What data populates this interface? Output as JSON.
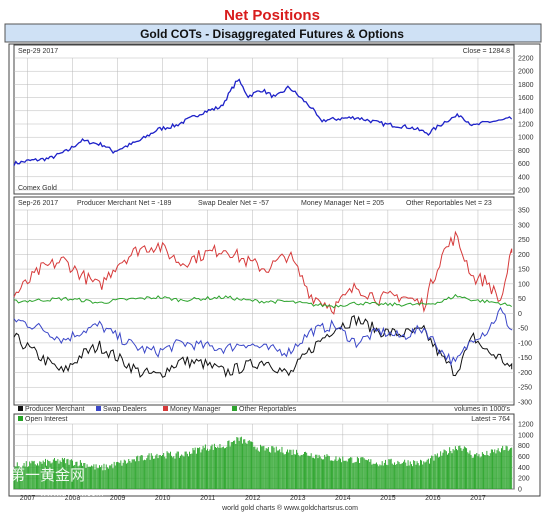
{
  "header": {
    "title": "Net Positions",
    "subtitle": "Gold COTs - Disaggregated Futures & Options"
  },
  "footer": {
    "credit": "world gold charts ® www.goldchartsrus.com",
    "watermark_cn": "第一黄金网",
    "watermark_url": "www.dyhjw.com"
  },
  "colors": {
    "title": "#d81c1c",
    "subtitle_bg": "#cfe1f5",
    "price_line": "#1e22c8",
    "producer": "#111111",
    "swap": "#3b47c8",
    "money": "#d63a3a",
    "other": "#2ea42e",
    "oi_bar": "#27a327",
    "grid": "#b9b9b9"
  },
  "chart_data": [
    {
      "type": "line",
      "name": "price",
      "label_date": "Sep-29 2017",
      "label_close": "Close = 1284.8",
      "label_source": "Comex Gold",
      "ylim": [
        200,
        2200
      ],
      "yticks": [
        200,
        400,
        600,
        800,
        1000,
        1200,
        1400,
        1600,
        1800,
        2000,
        2200
      ],
      "x_years": [
        "2007",
        "2008",
        "2009",
        "2010",
        "2011",
        "2012",
        "2013",
        "2014",
        "2015",
        "2016",
        "2017"
      ],
      "x": [
        2006.7,
        2007.0,
        2007.5,
        2007.9,
        2008.2,
        2008.7,
        2008.9,
        2009.5,
        2009.9,
        2010.3,
        2010.9,
        2011.3,
        2011.67,
        2011.9,
        2012.2,
        2012.5,
        2012.8,
        2013.3,
        2013.5,
        2013.9,
        2014.3,
        2014.9,
        2015.5,
        2015.9,
        2016.3,
        2016.6,
        2016.9,
        2017.2,
        2017.5,
        2017.75
      ],
      "series": [
        {
          "values": [
            600,
            640,
            680,
            800,
            950,
            880,
            780,
            950,
            1120,
            1180,
            1380,
            1460,
            1880,
            1620,
            1720,
            1600,
            1760,
            1450,
            1250,
            1280,
            1300,
            1200,
            1150,
            1060,
            1250,
            1340,
            1170,
            1230,
            1250,
            1284.8
          ]
        }
      ]
    },
    {
      "type": "line",
      "name": "net_positions",
      "label_date": "Sep-26 2017",
      "ylim": [
        -300,
        350
      ],
      "yticks": [
        -300,
        -250,
        -200,
        -150,
        -100,
        -50,
        0,
        50,
        100,
        150,
        200,
        250,
        300,
        350
      ],
      "legend": [
        "Producer Merchant",
        "Swap Dealers",
        "Money Manager",
        "Other Reportables"
      ],
      "legend_note": "volumes in 1000's",
      "series": [
        {
          "name": "Producer Merchant",
          "header_label": "Producer Merchant Net = -189",
          "x": [
            2006.7,
            2007.3,
            2007.8,
            2008.2,
            2008.6,
            2009.0,
            2009.5,
            2009.9,
            2010.4,
            2010.9,
            2011.4,
            2011.8,
            2012.3,
            2012.8,
            2013.3,
            2013.8,
            2014.3,
            2014.8,
            2015.3,
            2015.8,
            2016.2,
            2016.5,
            2016.9,
            2017.2,
            2017.5,
            2017.75
          ],
          "values": [
            -80,
            -150,
            -200,
            -140,
            -110,
            -150,
            -200,
            -210,
            -160,
            -170,
            -200,
            -180,
            -160,
            -210,
            -120,
            -50,
            -20,
            -60,
            -70,
            -60,
            -150,
            -200,
            -80,
            -130,
            -150,
            -189
          ]
        },
        {
          "name": "Swap Dealers",
          "header_label": "Swap Dealer Net = -57",
          "x": [
            2006.7,
            2007.3,
            2007.8,
            2008.2,
            2008.6,
            2009.0,
            2009.5,
            2009.9,
            2010.4,
            2010.9,
            2011.4,
            2011.8,
            2012.3,
            2012.8,
            2013.3,
            2013.8,
            2014.3,
            2014.8,
            2015.3,
            2015.8,
            2016.2,
            2016.5,
            2016.9,
            2017.2,
            2017.5,
            2017.75
          ],
          "values": [
            -20,
            -50,
            -90,
            -60,
            -40,
            -80,
            -120,
            -130,
            -100,
            -110,
            -120,
            -100,
            -120,
            -130,
            -60,
            -40,
            -100,
            -60,
            -80,
            -50,
            -130,
            -170,
            -80,
            -60,
            10,
            -57
          ]
        },
        {
          "name": "Money Manager",
          "header_label": "Money Manager Net = 205",
          "x": [
            2006.7,
            2007.3,
            2007.8,
            2008.2,
            2008.6,
            2009.0,
            2009.5,
            2009.9,
            2010.4,
            2010.9,
            2011.4,
            2011.8,
            2012.3,
            2012.8,
            2013.3,
            2013.8,
            2014.3,
            2014.8,
            2015.3,
            2015.8,
            2016.2,
            2016.5,
            2016.9,
            2017.2,
            2017.5,
            2017.75
          ],
          "values": [
            60,
            150,
            180,
            130,
            90,
            170,
            220,
            230,
            170,
            200,
            220,
            180,
            150,
            200,
            60,
            20,
            90,
            50,
            60,
            30,
            200,
            260,
            120,
            110,
            40,
            205
          ]
        },
        {
          "name": "Other Reportables",
          "header_label": "Other Reportables Net = 23",
          "x": [
            2006.7,
            2007.3,
            2007.8,
            2008.2,
            2008.6,
            2009.0,
            2009.5,
            2009.9,
            2010.4,
            2010.9,
            2011.4,
            2011.8,
            2012.3,
            2012.8,
            2013.3,
            2013.8,
            2014.3,
            2014.8,
            2015.3,
            2015.8,
            2016.2,
            2016.5,
            2016.9,
            2017.2,
            2017.5,
            2017.75
          ],
          "values": [
            40,
            45,
            50,
            45,
            35,
            45,
            50,
            55,
            45,
            50,
            55,
            45,
            40,
            40,
            30,
            25,
            35,
            30,
            30,
            30,
            40,
            60,
            45,
            40,
            35,
            23
          ]
        }
      ]
    },
    {
      "type": "bar",
      "name": "open_interest",
      "legend": "Open Interest",
      "label_latest": "Latest = 764",
      "ylim": [
        0,
        1200
      ],
      "yticks": [
        0,
        200,
        400,
        600,
        800,
        1000,
        1200
      ],
      "x": [
        2006.7,
        2007.3,
        2007.8,
        2008.2,
        2008.6,
        2009.0,
        2009.5,
        2009.9,
        2010.4,
        2010.9,
        2011.4,
        2011.7,
        2012.2,
        2012.8,
        2013.3,
        2013.8,
        2014.3,
        2014.8,
        2015.3,
        2015.8,
        2016.2,
        2016.6,
        2016.9,
        2017.2,
        2017.5,
        2017.75
      ],
      "values": [
        420,
        480,
        520,
        480,
        380,
        460,
        560,
        640,
        620,
        760,
        800,
        920,
        740,
        700,
        640,
        560,
        540,
        480,
        500,
        480,
        640,
        800,
        620,
        640,
        720,
        764
      ]
    }
  ]
}
